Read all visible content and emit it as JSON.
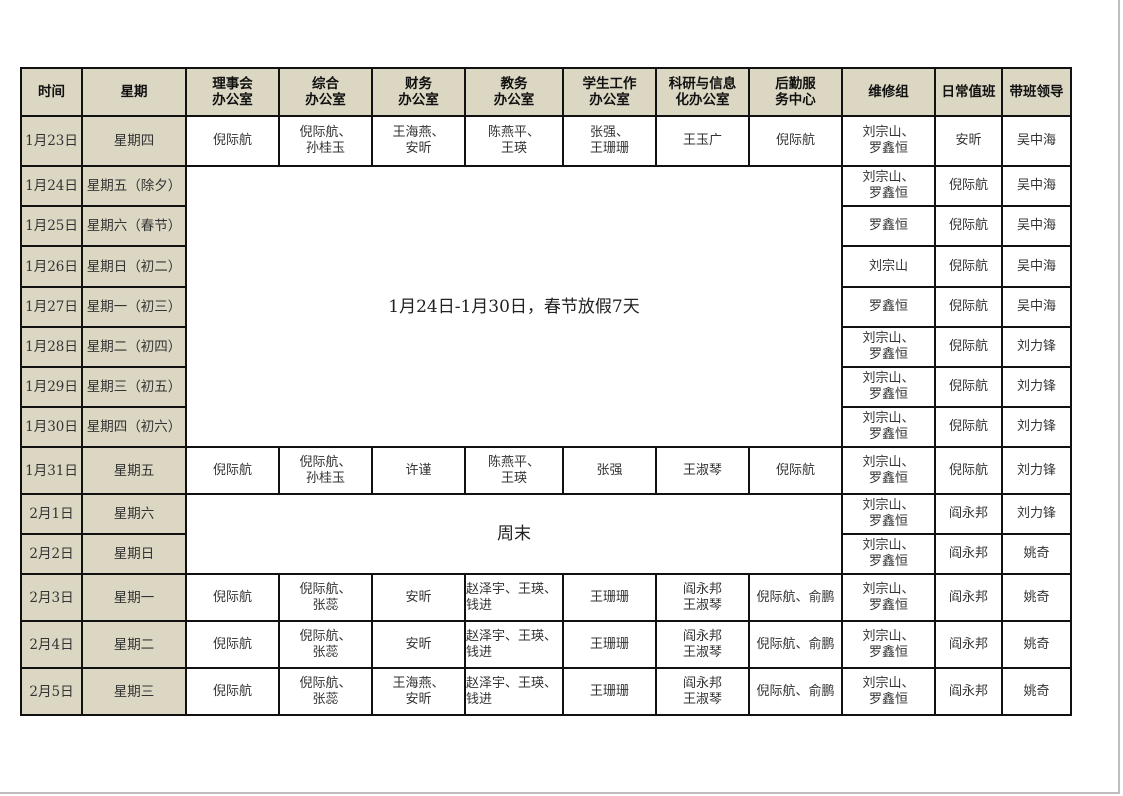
{
  "headers": [
    "时间",
    "星期",
    "理事会\n办公室",
    "综合\n办公室",
    "财务\n办公室",
    "教务\n办公室",
    "学生工作\n办公室",
    "科研与信息\n化办公室",
    "后勤服\n务中心",
    "维修组",
    "日常值班",
    "带班领导"
  ],
  "holiday_note": "1月24日-1月30日，春节放假7天",
  "weekend_note": "周末",
  "rows": [
    {
      "date": "1月23日",
      "weekday": "星期四",
      "offices": [
        "倪际航",
        "倪际航、\n孙桂玉",
        "王海燕、\n安昕",
        "陈燕平、\n王瑛",
        "张强、\n王珊珊",
        "王玉广",
        "倪际航"
      ],
      "repair": "刘宗山、\n罗鑫恒",
      "duty": "安昕",
      "leader": "吴中海"
    },
    {
      "date": "1月24日",
      "weekday": "星期五（除夕）",
      "offices": null,
      "repair": "刘宗山、\n罗鑫恒",
      "duty": "倪际航",
      "leader": "吴中海"
    },
    {
      "date": "1月25日",
      "weekday": "星期六（春节）",
      "offices": null,
      "repair": "罗鑫恒",
      "duty": "倪际航",
      "leader": "吴中海"
    },
    {
      "date": "1月26日",
      "weekday": "星期日（初二）",
      "offices": null,
      "repair": "刘宗山",
      "duty": "倪际航",
      "leader": "吴中海"
    },
    {
      "date": "1月27日",
      "weekday": "星期一（初三）",
      "offices": null,
      "repair": "罗鑫恒",
      "duty": "倪际航",
      "leader": "吴中海"
    },
    {
      "date": "1月28日",
      "weekday": "星期二（初四）",
      "offices": null,
      "repair": "刘宗山、\n罗鑫恒",
      "duty": "倪际航",
      "leader": "刘力锋"
    },
    {
      "date": "1月29日",
      "weekday": "星期三（初五）",
      "offices": null,
      "repair": "刘宗山、\n罗鑫恒",
      "duty": "倪际航",
      "leader": "刘力锋"
    },
    {
      "date": "1月30日",
      "weekday": "星期四（初六）",
      "offices": null,
      "repair": "刘宗山、\n罗鑫恒",
      "duty": "倪际航",
      "leader": "刘力锋"
    },
    {
      "date": "1月31日",
      "weekday": "星期五",
      "offices": [
        "倪际航",
        "倪际航、\n孙桂玉",
        "许谨",
        "陈燕平、\n王瑛",
        "张强",
        "王淑琴",
        "倪际航"
      ],
      "repair": "刘宗山、\n罗鑫恒",
      "duty": "倪际航",
      "leader": "刘力锋"
    },
    {
      "date": "2月1日",
      "weekday": "星期六",
      "offices": null,
      "repair": "刘宗山、\n罗鑫恒",
      "duty": "阎永邦",
      "leader": "刘力锋"
    },
    {
      "date": "2月2日",
      "weekday": "星期日",
      "offices": null,
      "repair": "刘宗山、\n罗鑫恒",
      "duty": "阎永邦",
      "leader": "姚奇"
    },
    {
      "date": "2月3日",
      "weekday": "星期一",
      "offices": [
        "倪际航",
        "倪际航、\n张蕊",
        "安昕",
        "赵泽宇、王瑛、\n钱进",
        "王珊珊",
        "阎永邦\n王淑琴",
        "倪际航、俞鹏"
      ],
      "repair": "刘宗山、\n罗鑫恒",
      "duty": "阎永邦",
      "leader": "姚奇"
    },
    {
      "date": "2月4日",
      "weekday": "星期二",
      "offices": [
        "倪际航",
        "倪际航、\n张蕊",
        "安昕",
        "赵泽宇、王瑛、\n钱进",
        "王珊珊",
        "阎永邦\n王淑琴",
        "倪际航、俞鹏"
      ],
      "repair": "刘宗山、\n罗鑫恒",
      "duty": "阎永邦",
      "leader": "姚奇"
    },
    {
      "date": "2月5日",
      "weekday": "星期三",
      "offices": [
        "倪际航",
        "倪际航、\n张蕊",
        "王海燕、\n安昕",
        "赵泽宇、王瑛、\n钱进",
        "王珊珊",
        "阎永邦\n王淑琴",
        "倪际航、俞鹏"
      ],
      "repair": "刘宗山、\n罗鑫恒",
      "duty": "阎永邦",
      "leader": "姚奇"
    }
  ]
}
